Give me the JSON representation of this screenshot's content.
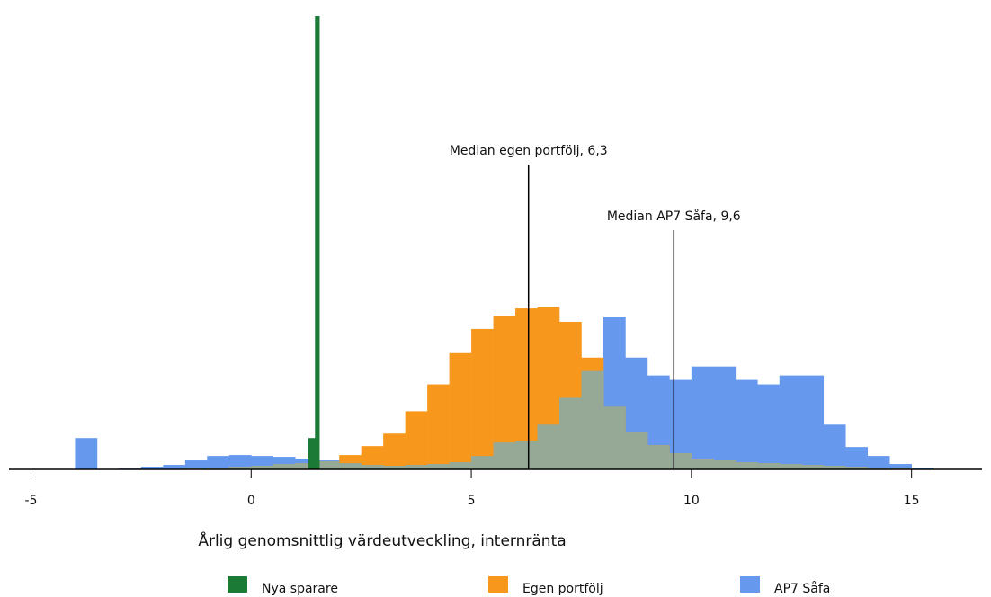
{
  "chart_data": {
    "type": "histogram",
    "xlabel": "Årlig genomsnittlig värdeutveckling, internränta",
    "xlim": [
      -5.5,
      16.6
    ],
    "xticks": [
      -5,
      0,
      5,
      10,
      15
    ],
    "ylim": [
      0,
      51
    ],
    "series": [
      {
        "name": "Nya sparare",
        "color": "#1b7a36",
        "bins": [
          1.3,
          1.45,
          1.55
        ],
        "values": [
          3.5,
          50.7
        ]
      },
      {
        "name": "Egen portfölj",
        "color": "#f7981d",
        "bins": [
          -4,
          -3.5,
          -3,
          -2.5,
          -2,
          -1.5,
          -1,
          -0.5,
          0,
          0.5,
          1,
          1.5,
          2,
          2.5,
          3,
          3.5,
          4,
          4.5,
          5,
          5.5,
          6,
          6.5,
          7,
          7.5,
          8,
          8.5,
          9,
          9.5,
          10,
          10.5,
          11,
          11.5,
          12,
          12.5,
          13,
          13.5,
          14,
          14.5,
          15,
          15.5
        ],
        "values": [
          0,
          0,
          0,
          0,
          0,
          0.1,
          0.2,
          0.3,
          0.4,
          0.6,
          0.7,
          0.9,
          1.6,
          2.6,
          4,
          6.5,
          9.5,
          13,
          15.7,
          17.2,
          18,
          18.2,
          16.5,
          12.5,
          7,
          4.2,
          2.7,
          1.8,
          1.2,
          1,
          0.8,
          0.7,
          0.6,
          0.5,
          0.4,
          0.3,
          0.2,
          0.1,
          0
        ]
      },
      {
        "name": "AP7 Såfa",
        "color": "#6699ee",
        "bins": [
          -4,
          -3.5,
          -3,
          -2.5,
          -2,
          -1.5,
          -1,
          -0.5,
          0,
          0.5,
          1,
          1.5,
          2,
          2.5,
          3,
          3.5,
          4,
          4.5,
          5,
          5.5,
          6,
          6.5,
          7,
          7.5,
          8,
          8.5,
          9,
          9.5,
          10,
          10.5,
          11,
          11.5,
          12,
          12.5,
          13,
          13.5,
          14,
          14.5,
          15,
          15.5
        ],
        "values": [
          3.5,
          0,
          0.1,
          0.3,
          0.5,
          1,
          1.5,
          1.6,
          1.5,
          1.4,
          1.2,
          1,
          0.7,
          0.5,
          0.4,
          0.5,
          0.6,
          0.8,
          1.5,
          3,
          3.2,
          5,
          8,
          11,
          17,
          12.5,
          10.5,
          10,
          11.5,
          11.5,
          10,
          9.5,
          10.5,
          10.5,
          5,
          2.5,
          1.5,
          0.6,
          0.2
        ]
      }
    ],
    "overlap_color": "#96a996",
    "annotations": [
      {
        "x": 6.3,
        "label": "Median egen portfölj, 6,3"
      },
      {
        "x": 9.6,
        "label": "Median AP7 Såfa, 9,6"
      }
    ]
  }
}
